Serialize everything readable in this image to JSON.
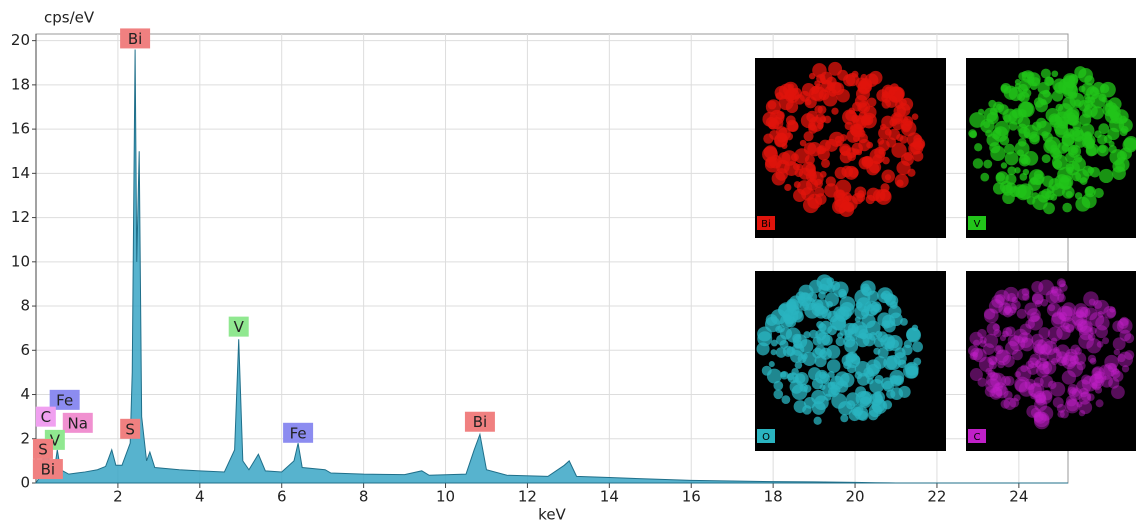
{
  "chart_data": {
    "type": "area",
    "ylabel": "cps/eV",
    "xlabel": "keV",
    "xlim": [
      0,
      25.2
    ],
    "ylim": [
      0,
      20.3
    ],
    "xticks": [
      2,
      4,
      6,
      8,
      10,
      12,
      14,
      16,
      18,
      20,
      22,
      24
    ],
    "yticks": [
      0,
      2,
      4,
      6,
      8,
      10,
      12,
      14,
      16,
      18,
      20
    ],
    "grid": true,
    "color": "#3aa6c6",
    "x": [
      0,
      0.1,
      0.18,
      0.27,
      0.35,
      0.45,
      0.52,
      0.6,
      0.7,
      0.8,
      1.0,
      1.2,
      1.5,
      1.7,
      1.85,
      1.95,
      2.1,
      2.3,
      2.35,
      2.42,
      2.46,
      2.52,
      2.58,
      2.7,
      2.78,
      2.9,
      3.2,
      3.5,
      4.0,
      4.6,
      4.85,
      4.95,
      5.05,
      5.2,
      5.43,
      5.6,
      6.0,
      6.3,
      6.4,
      6.5,
      7.06,
      7.2,
      8.0,
      9.0,
      9.42,
      9.6,
      10.5,
      10.7,
      10.84,
      11.0,
      11.5,
      12.5,
      12.9,
      13.02,
      13.2,
      14,
      15,
      16,
      17,
      18,
      19,
      20,
      20.5,
      21,
      25.2
    ],
    "values": [
      0,
      0.3,
      1.2,
      1.5,
      0.8,
      0.6,
      1.5,
      0.6,
      0.5,
      0.4,
      0.45,
      0.5,
      0.6,
      0.75,
      1.5,
      0.8,
      0.8,
      1.8,
      5.0,
      19.6,
      10,
      15.0,
      3.0,
      1.0,
      1.4,
      0.7,
      0.65,
      0.6,
      0.55,
      0.5,
      1.5,
      6.5,
      1.0,
      0.6,
      1.3,
      0.55,
      0.5,
      1.0,
      1.8,
      0.7,
      0.6,
      0.45,
      0.4,
      0.38,
      0.55,
      0.35,
      0.4,
      1.5,
      2.2,
      0.6,
      0.35,
      0.3,
      0.8,
      1.0,
      0.3,
      0.25,
      0.18,
      0.12,
      0.09,
      0.06,
      0.05,
      0.03,
      0.01,
      0,
      0
    ],
    "peak_labels": [
      {
        "text": "Bi",
        "x": 2.42,
        "y": 20.1,
        "color": "#f08080"
      },
      {
        "text": "V",
        "x": 4.95,
        "y": 7.07,
        "color": "#90e890"
      },
      {
        "text": "Fe",
        "x": 6.4,
        "y": 2.27,
        "color": "#8c8cf0"
      },
      {
        "text": "S",
        "x": 2.3,
        "y": 2.45,
        "color": "#f08080"
      },
      {
        "text": "Bi",
        "x": 10.84,
        "y": 2.77,
        "color": "#f08080"
      },
      {
        "text": "Fe",
        "x": 0.7,
        "y": 3.76,
        "color": "#8c8cf0"
      },
      {
        "text": "C",
        "x": 0.24,
        "y": 3.0,
        "color": "#f0a0f0"
      },
      {
        "text": "Na",
        "x": 1.02,
        "y": 2.72,
        "color": "#f090d0"
      },
      {
        "text": "V",
        "x": 0.46,
        "y": 1.95,
        "color": "#90e890"
      },
      {
        "text": "S",
        "x": 0.17,
        "y": 1.54,
        "color": "#f08080"
      },
      {
        "text": "Bi",
        "x": 0.29,
        "y": 0.63,
        "color": "#f08080"
      }
    ],
    "element_maps": [
      {
        "label": "Bi",
        "color": "#e0140c"
      },
      {
        "label": "V",
        "color": "#22c41a"
      },
      {
        "label": "O",
        "color": "#2ab4c0"
      },
      {
        "label": "C",
        "color": "#c020c8"
      }
    ]
  }
}
